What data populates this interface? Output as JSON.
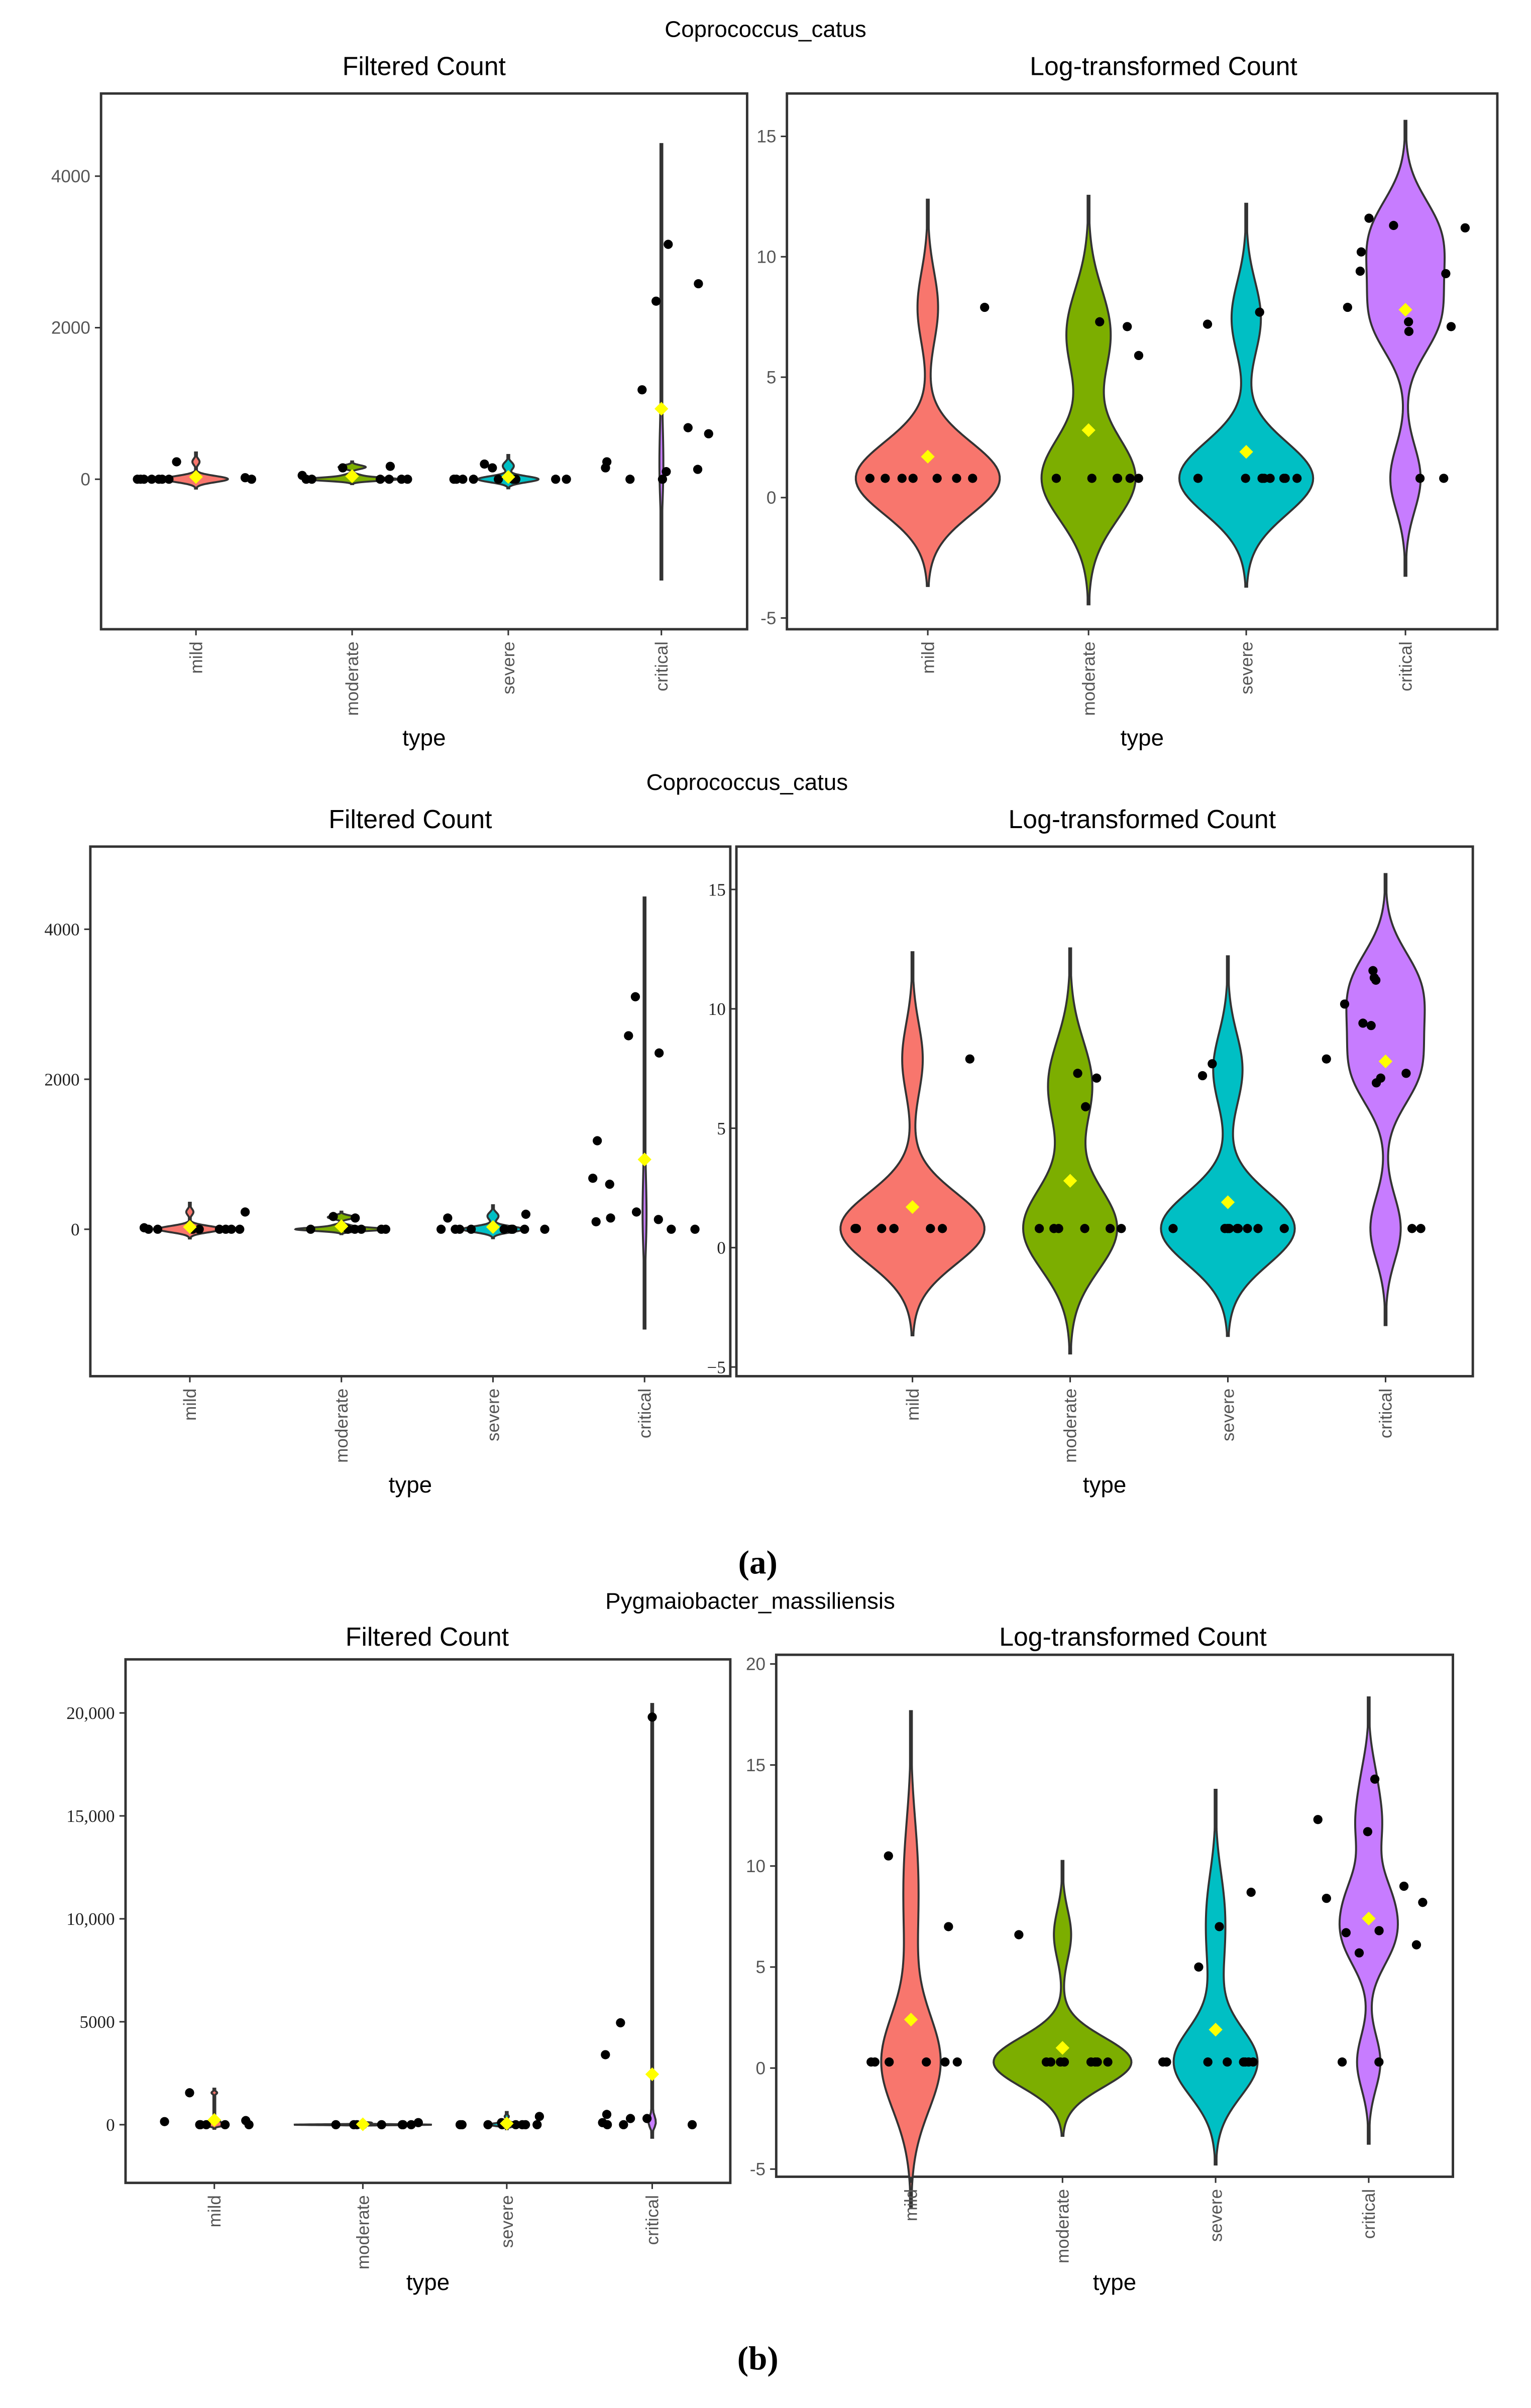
{
  "figures": [
    {
      "title": "Coprococcus_catus"
    },
    {
      "title": "Coprococcus_catus"
    },
    {
      "title": "Pygmaiobacter_massiliensis"
    }
  ],
  "captions": [
    "(a)",
    "(b)"
  ],
  "colors": {
    "mild": "#F8766D",
    "moderate": "#7CAE00",
    "severe": "#00BFC4",
    "critical": "#C77CFF",
    "mean": "#FFFF00",
    "point": "#000000"
  },
  "chart_data": [
    {
      "type": "violin",
      "figure": 0,
      "title": "Filtered Count",
      "xlabel": "type",
      "ylabel": "",
      "categories": [
        "mild",
        "moderate",
        "severe",
        "critical"
      ],
      "ylim": [
        -1800,
        4800
      ],
      "yticks": [
        {
          "v": 0,
          "label": "0"
        },
        {
          "v": 2000,
          "label": "2000"
        },
        {
          "v": 4000,
          "label": "4000"
        }
      ],
      "series": [
        {
          "name": "mild",
          "values": [
            0,
            0,
            0,
            0,
            0,
            0,
            0,
            0,
            230,
            20
          ],
          "mean": 30
        },
        {
          "name": "moderate",
          "values": [
            0,
            0,
            50,
            150,
            170,
            0,
            0,
            0,
            0
          ],
          "mean": 40
        },
        {
          "name": "severe",
          "values": [
            0,
            0,
            150,
            200,
            0,
            0,
            0,
            0,
            0,
            0,
            0
          ],
          "mean": 30
        },
        {
          "name": "critical",
          "values": [
            3100,
            2350,
            1180,
            600,
            230,
            130,
            150,
            100,
            0,
            0,
            2580,
            680
          ],
          "mean": 930
        }
      ]
    },
    {
      "type": "violin",
      "figure": 0,
      "title": "Log-transformed Count",
      "xlabel": "type",
      "ylabel": "",
      "categories": [
        "mild",
        "moderate",
        "severe",
        "critical"
      ],
      "ylim": [
        -5.5,
        16.5
      ],
      "yticks": [
        {
          "v": -5,
          "label": "-5"
        },
        {
          "v": 0,
          "label": "0"
        },
        {
          "v": 5,
          "label": "5"
        },
        {
          "v": 10,
          "label": "10"
        },
        {
          "v": 15,
          "label": "15"
        }
      ],
      "series": [
        {
          "name": "mild",
          "values": [
            7.9,
            0.8,
            0.8,
            0.8,
            0.8,
            0.8,
            0.8,
            0.8
          ],
          "mean": 1.7
        },
        {
          "name": "moderate",
          "values": [
            7.1,
            7.3,
            5.9,
            0.8,
            0.8,
            0.8,
            0.8,
            0.8,
            0.8
          ],
          "mean": 2.8
        },
        {
          "name": "severe",
          "values": [
            7.2,
            7.7,
            0.8,
            0.8,
            0.8,
            0.8,
            0.8,
            0.8,
            0.8,
            0.8,
            0.8
          ],
          "mean": 1.9
        },
        {
          "name": "critical",
          "values": [
            11.2,
            11.3,
            11.6,
            10.2,
            7.9,
            7.3,
            7.1,
            6.9,
            9.4,
            9.3,
            0.8,
            0.8
          ],
          "mean": 7.8
        }
      ]
    },
    {
      "type": "violin",
      "figure": 1,
      "title": "Filtered Count",
      "xlabel": "type",
      "ylabel": "",
      "categories": [
        "mild",
        "moderate",
        "severe",
        "critical"
      ],
      "ylim": [
        -1950,
        5000
      ],
      "yticks": [
        {
          "v": 0,
          "label": "0"
        },
        {
          "v": 2000,
          "label": "2000"
        },
        {
          "v": 4000,
          "label": "4000"
        }
      ],
      "series": [
        {
          "name": "mild",
          "values": [
            0,
            0,
            0,
            0,
            0,
            0,
            0,
            0,
            230,
            20
          ],
          "mean": 30
        },
        {
          "name": "moderate",
          "values": [
            0,
            0,
            50,
            150,
            170,
            0,
            0,
            0,
            0
          ],
          "mean": 40
        },
        {
          "name": "severe",
          "values": [
            0,
            0,
            150,
            200,
            0,
            0,
            0,
            0,
            0,
            0,
            0
          ],
          "mean": 30
        },
        {
          "name": "critical",
          "values": [
            3100,
            2350,
            1180,
            600,
            230,
            130,
            150,
            100,
            0,
            0,
            2580,
            680
          ],
          "mean": 930
        }
      ]
    },
    {
      "type": "violin",
      "figure": 1,
      "title": "Log-transformed Count",
      "xlabel": "type",
      "ylabel": "",
      "categories": [
        "mild",
        "moderate",
        "severe",
        "critical"
      ],
      "ylim": [
        -5.5,
        16.5
      ],
      "yticks": [
        {
          "v": -5,
          "label": "−5"
        },
        {
          "v": 0,
          "label": "0"
        },
        {
          "v": 5,
          "label": "5"
        },
        {
          "v": 10,
          "label": "10"
        },
        {
          "v": 15,
          "label": "15"
        }
      ],
      "series": [
        {
          "name": "mild",
          "values": [
            7.9,
            0.8,
            0.8,
            0.8,
            0.8,
            0.8,
            0.8,
            0.8
          ],
          "mean": 1.7
        },
        {
          "name": "moderate",
          "values": [
            7.1,
            7.3,
            5.9,
            0.8,
            0.8,
            0.8,
            0.8,
            0.8,
            0.8
          ],
          "mean": 2.8
        },
        {
          "name": "severe",
          "values": [
            7.2,
            7.7,
            0.8,
            0.8,
            0.8,
            0.8,
            0.8,
            0.8,
            0.8,
            0.8,
            0.8
          ],
          "mean": 1.9
        },
        {
          "name": "critical",
          "values": [
            11.2,
            11.3,
            11.6,
            10.2,
            7.9,
            7.3,
            7.1,
            6.9,
            9.4,
            9.3,
            0.8,
            0.8
          ],
          "mean": 7.8
        }
      ]
    },
    {
      "type": "violin",
      "figure": 2,
      "title": "Filtered Count",
      "xlabel": "type",
      "ylabel": "",
      "categories": [
        "mild",
        "moderate",
        "severe",
        "critical"
      ],
      "ylim": [
        -2600,
        22500
      ],
      "yticks": [
        {
          "v": 0,
          "label": "0"
        },
        {
          "v": 5000,
          "label": "5000"
        },
        {
          "v": 10000,
          "label": "10,000"
        },
        {
          "v": 15000,
          "label": "15,000"
        },
        {
          "v": 20000,
          "label": "20,000"
        }
      ],
      "series": [
        {
          "name": "mild",
          "values": [
            0,
            200,
            0,
            0,
            0,
            150,
            1550,
            0
          ],
          "mean": 230
        },
        {
          "name": "moderate",
          "values": [
            0,
            0,
            0,
            0,
            0,
            0,
            0,
            0,
            100
          ],
          "mean": 20
        },
        {
          "name": "severe",
          "values": [
            100,
            0,
            0,
            0,
            0,
            0,
            0,
            0,
            0,
            400
          ],
          "mean": 60
        },
        {
          "name": "critical",
          "values": [
            4950,
            3400,
            19800,
            100,
            300,
            500,
            0,
            0,
            0,
            300
          ],
          "mean": 2450
        }
      ]
    },
    {
      "type": "violin",
      "figure": 2,
      "title": "Log-transformed Count",
      "xlabel": "type",
      "ylabel": "",
      "categories": [
        "mild",
        "moderate",
        "severe",
        "critical"
      ],
      "ylim": [
        -5.5,
        20
      ],
      "yticks": [
        {
          "v": -5,
          "label": "-5"
        },
        {
          "v": 0,
          "label": "0"
        },
        {
          "v": 5,
          "label": "5"
        },
        {
          "v": 10,
          "label": "10"
        },
        {
          "v": 15,
          "label": "15"
        },
        {
          "v": 20,
          "label": "20"
        }
      ],
      "series": [
        {
          "name": "mild",
          "values": [
            10.5,
            0.3,
            0.3,
            0.3,
            0.3,
            7.0,
            0.3,
            0.3
          ],
          "mean": 2.4
        },
        {
          "name": "moderate",
          "values": [
            6.6,
            0.3,
            0.3,
            0.3,
            0.3,
            0.3,
            0.3,
            0.3,
            0.3
          ],
          "mean": 1.0
        },
        {
          "name": "severe",
          "values": [
            8.7,
            5.0,
            0.3,
            0.3,
            0.3,
            0.3,
            0.3,
            0.3,
            0.3,
            0.3,
            0.3,
            7.0
          ],
          "mean": 1.9
        },
        {
          "name": "critical",
          "values": [
            14.3,
            11.7,
            8.4,
            6.8,
            6.7,
            5.7,
            0.3,
            12.3,
            9.0,
            8.2,
            6.1,
            0.3
          ],
          "mean": 7.4
        }
      ]
    }
  ]
}
